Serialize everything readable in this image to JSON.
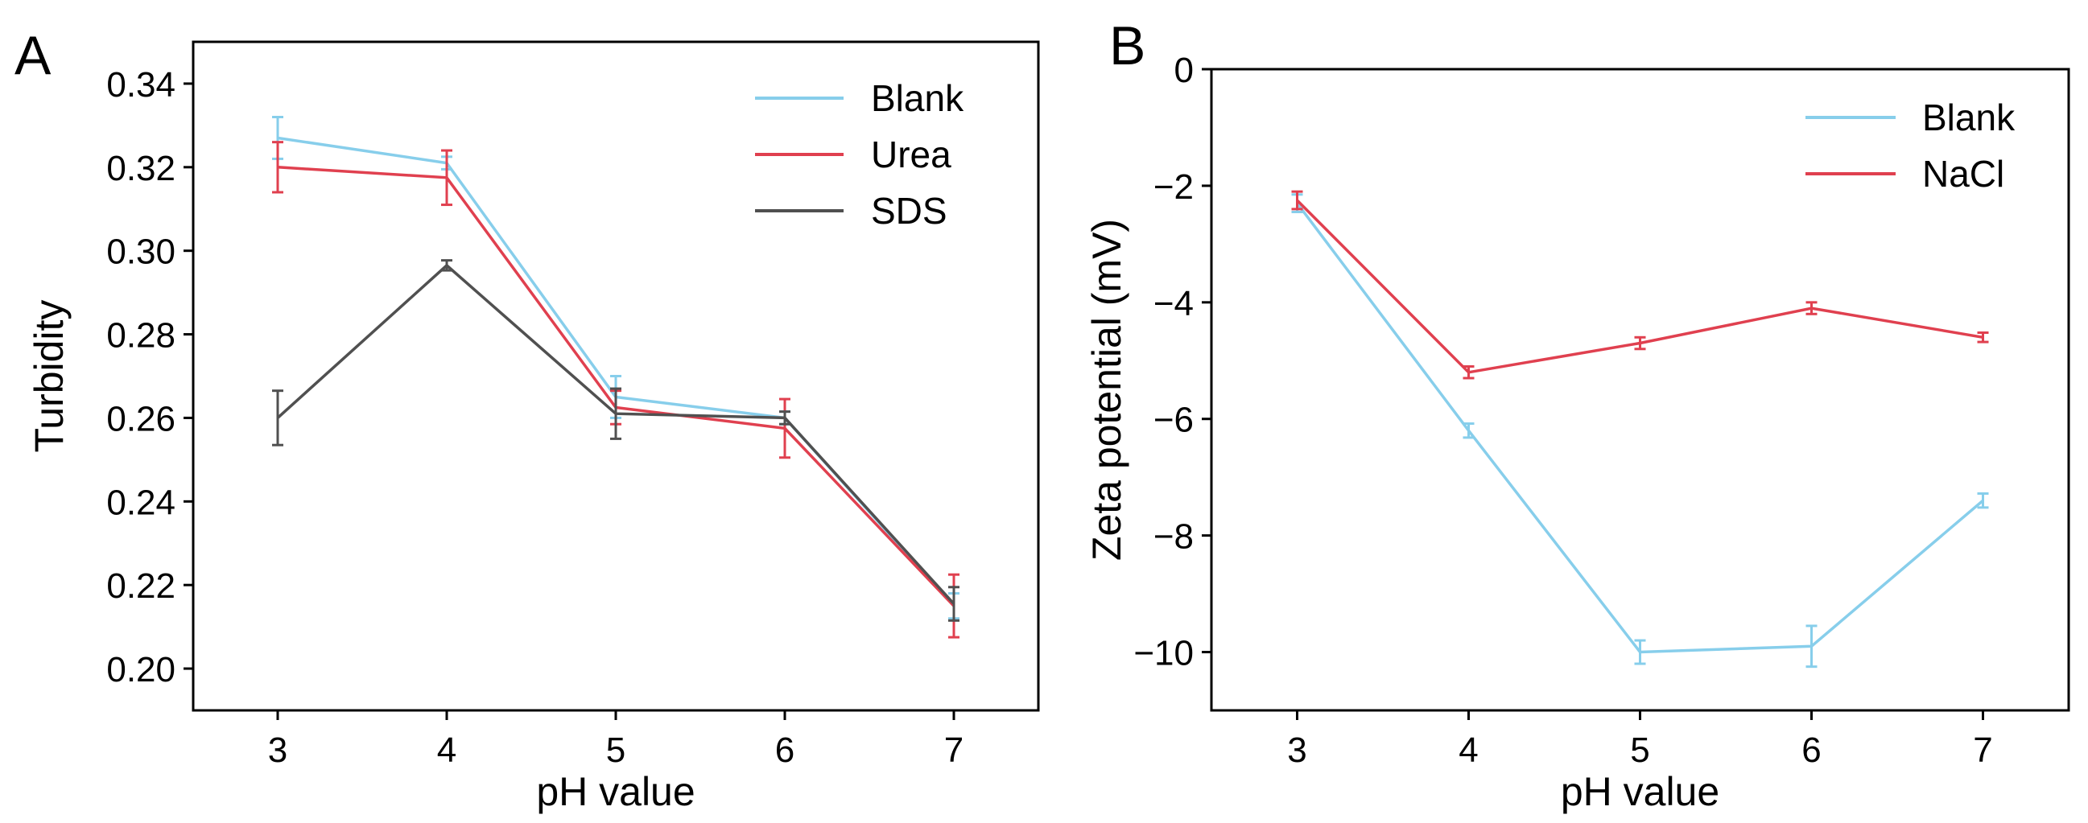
{
  "chart_data": [
    {
      "panel": "A",
      "type": "line",
      "xlabel": "pH value",
      "ylabel": "Turbidity",
      "x": [
        3,
        4,
        5,
        6,
        7
      ],
      "xticks": [
        "3",
        "4",
        "5",
        "6",
        "7"
      ],
      "xlim": [
        2.5,
        7.5
      ],
      "ylim": [
        0.19,
        0.35
      ],
      "yticks": [
        "0.20",
        "0.22",
        "0.24",
        "0.26",
        "0.28",
        "0.30",
        "0.32",
        "0.34"
      ],
      "legend_position": "top-right",
      "series": [
        {
          "name": "Blank",
          "color": "#87CEEB",
          "values": [
            0.327,
            0.321,
            0.265,
            0.26,
            0.215
          ],
          "errors": [
            0.005,
            0.0015,
            0.005,
            0.0015,
            0.003
          ]
        },
        {
          "name": "Urea",
          "color": "#E0404F",
          "values": [
            0.32,
            0.3175,
            0.2625,
            0.2575,
            0.215
          ],
          "errors": [
            0.006,
            0.0065,
            0.004,
            0.007,
            0.0075
          ]
        },
        {
          "name": "SDS",
          "color": "#505050",
          "values": [
            0.26,
            0.2965,
            0.261,
            0.26,
            0.2155
          ],
          "errors": [
            0.0065,
            0.0012,
            0.006,
            0.0015,
            0.004
          ]
        }
      ]
    },
    {
      "panel": "B",
      "type": "line",
      "xlabel": "pH value",
      "ylabel": "Zeta potential (mV)",
      "x": [
        3,
        4,
        5,
        6,
        7
      ],
      "xticks": [
        "3",
        "4",
        "5",
        "6",
        "7"
      ],
      "xlim": [
        2.5,
        7.5
      ],
      "ylim": [
        -11,
        0
      ],
      "yticks": [
        "−10",
        "−8",
        "−6",
        "−4",
        "−2",
        "0"
      ],
      "legend_position": "top-right",
      "series": [
        {
          "name": "Blank",
          "color": "#87CEEB",
          "values": [
            -2.3,
            -6.2,
            -10.0,
            -9.9,
            -7.4
          ],
          "errors": [
            0.15,
            0.12,
            0.2,
            0.35,
            0.12
          ]
        },
        {
          "name": "NaCl",
          "color": "#E0404F",
          "values": [
            -2.25,
            -5.2,
            -4.7,
            -4.1,
            -4.6
          ],
          "errors": [
            0.15,
            0.1,
            0.1,
            0.1,
            0.08
          ]
        }
      ]
    }
  ]
}
